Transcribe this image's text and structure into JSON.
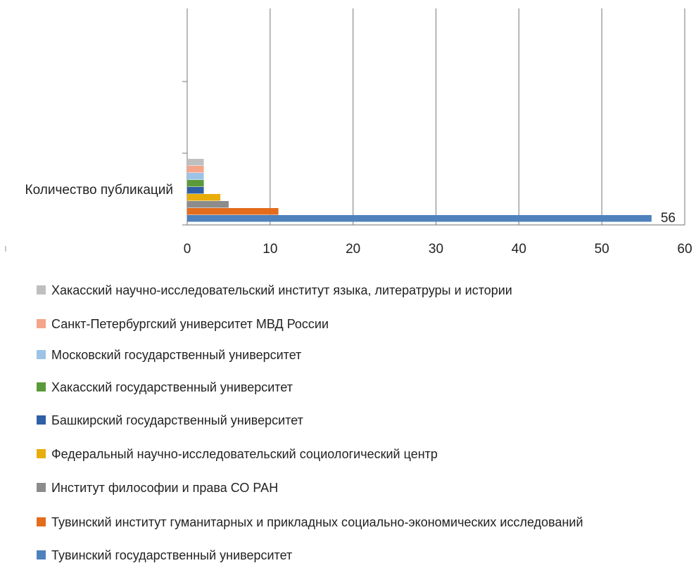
{
  "chart_data": {
    "type": "bar",
    "orientation": "horizontal",
    "categories": [
      "Количество публикаций"
    ],
    "xlim": [
      0,
      60
    ],
    "xticks": [
      0,
      10,
      20,
      30,
      40,
      50,
      60
    ],
    "grid": true,
    "legend_position": "bottom",
    "series": [
      {
        "name": "Тувинский государственный университет",
        "values": [
          56
        ],
        "color": "#4f81bd",
        "data_label": "56"
      },
      {
        "name": "Тувинский институт гуманитарных и прикладных социально-экономических исследований",
        "values": [
          11
        ],
        "color": "#e36c1d"
      },
      {
        "name": "Институт философии и права СО РАН",
        "values": [
          5
        ],
        "color": "#8c8c8c"
      },
      {
        "name": "Федеральный научно-исследовательский социологический центр",
        "values": [
          4
        ],
        "color": "#e8ad09"
      },
      {
        "name": "Башкирский государственный университет",
        "values": [
          2
        ],
        "color": "#2f5fa7"
      },
      {
        "name": "Хакасский государственный университет",
        "values": [
          2
        ],
        "color": "#5a9a3a"
      },
      {
        "name": "Московский государственный университет",
        "values": [
          2
        ],
        "color": "#9dc3e6"
      },
      {
        "name": "Санкт-Петербургский университет МВД России",
        "values": [
          2
        ],
        "color": "#f4a58a"
      },
      {
        "name": "Хакасский научно-исследовательский институт языка, литератруры и истории",
        "values": [
          2
        ],
        "color": "#bfbfbf"
      }
    ]
  }
}
